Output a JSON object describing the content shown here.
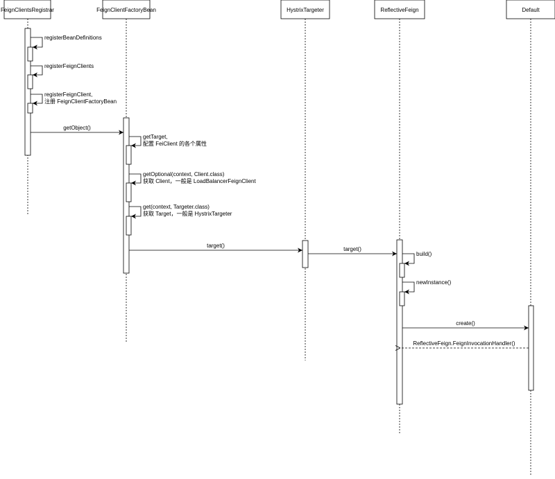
{
  "participants": [
    {
      "name": "FeignClientsRegistrar"
    },
    {
      "name": "FeignClientFactoryBean"
    },
    {
      "name": "HystrixTargeter"
    },
    {
      "name": "ReflectiveFeign"
    },
    {
      "name": "Default"
    }
  ],
  "messages": {
    "m1": {
      "line1": "registerBeanDefinitions",
      "line2": ""
    },
    "m2": {
      "line1": "registerFeignClients",
      "line2": ""
    },
    "m3": {
      "line1": "registerFeignClient,",
      "line2": "注册 FeignClientFactoryBean"
    },
    "m4": {
      "label": "getObject()"
    },
    "m5": {
      "line1": "getTarget,",
      "line2": "配置 FeiClient 的各个属性"
    },
    "m6": {
      "line1": "getOptional(context, Client.class)",
      "line2": "获取 Client，一般是 LoadBalancerFeignClient"
    },
    "m7": {
      "line1": "get(context, Targeter.class)",
      "line2": "获取 Target，一般是 HystrixTargeter"
    },
    "m8": {
      "label": "target()"
    },
    "m9": {
      "label": "target()"
    },
    "m10": {
      "line1": "build()",
      "line2": ""
    },
    "m11": {
      "line1": "newInstance()",
      "line2": ""
    },
    "m12": {
      "label": "create()"
    },
    "m13": {
      "label": "ReflectiveFeign.FeignInvocationHandler()"
    }
  }
}
